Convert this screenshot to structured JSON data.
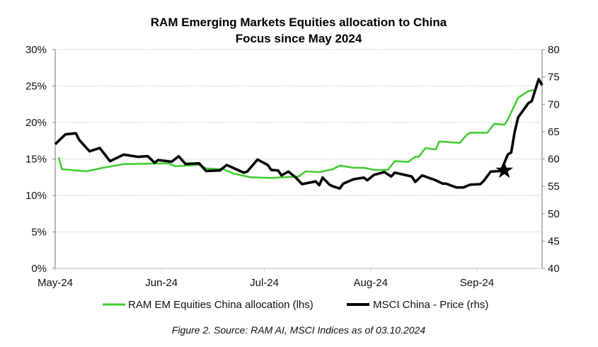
{
  "chart_data": {
    "type": "line",
    "title": [
      "RAM Emerging Markets Equities allocation to China",
      "Focus since May 2024"
    ],
    "caption": "Figure 2. Source: RAM AI, MSCI Indices as of 03.10.2024",
    "x_ticks": [
      {
        "date": "2024-05-01",
        "label": "May-24"
      },
      {
        "date": "2024-06-01",
        "label": "Jun-24"
      },
      {
        "date": "2024-07-01",
        "label": "Jul-24"
      },
      {
        "date": "2024-08-01",
        "label": "Aug-24"
      },
      {
        "date": "2024-09-01",
        "label": "Sep-24"
      }
    ],
    "xlim": [
      "2024-05-01",
      "2024-09-20"
    ],
    "y_left": {
      "lim": [
        0,
        30
      ],
      "ticks": [
        "0%",
        "5%",
        "10%",
        "15%",
        "20%",
        "25%",
        "30%"
      ],
      "values": [
        0,
        5,
        10,
        15,
        20,
        25,
        30
      ]
    },
    "y_right": {
      "lim": [
        40,
        80
      ],
      "ticks": [
        "40",
        "45",
        "50",
        "55",
        "60",
        "65",
        "70",
        "75",
        "80"
      ],
      "values": [
        40,
        45,
        50,
        55,
        60,
        65,
        70,
        75,
        80
      ]
    },
    "grid": true,
    "legend_position": "bottom",
    "series": [
      {
        "name": "RAM EM Equities China allocation (lhs)",
        "axis": "left",
        "color": "#44cc33",
        "points": [
          [
            "2024-05-02",
            15.2
          ],
          [
            "2024-05-03",
            13.6
          ],
          [
            "2024-05-10",
            13.3
          ],
          [
            "2024-05-15",
            13.8
          ],
          [
            "2024-05-21",
            14.3
          ],
          [
            "2024-06-03",
            14.4
          ],
          [
            "2024-06-05",
            14.0
          ],
          [
            "2024-06-12",
            14.2
          ],
          [
            "2024-06-14",
            13.7
          ],
          [
            "2024-06-19",
            13.6
          ],
          [
            "2024-06-22",
            13.0
          ],
          [
            "2024-06-27",
            12.5
          ],
          [
            "2024-07-03",
            12.4
          ],
          [
            "2024-07-11",
            12.6
          ],
          [
            "2024-07-13",
            13.3
          ],
          [
            "2024-07-17",
            13.2
          ],
          [
            "2024-07-21",
            13.6
          ],
          [
            "2024-07-23",
            14.1
          ],
          [
            "2024-07-27",
            13.8
          ],
          [
            "2024-07-30",
            13.8
          ],
          [
            "2024-08-02",
            13.5
          ],
          [
            "2024-08-06",
            13.5
          ],
          [
            "2024-08-08",
            14.7
          ],
          [
            "2024-08-12",
            14.6
          ],
          [
            "2024-08-14",
            15.3
          ],
          [
            "2024-08-15",
            15.3
          ],
          [
            "2024-08-17",
            16.5
          ],
          [
            "2024-08-20",
            16.3
          ],
          [
            "2024-08-21",
            17.4
          ],
          [
            "2024-08-27",
            17.2
          ],
          [
            "2024-08-29",
            18.3
          ],
          [
            "2024-08-30",
            18.6
          ],
          [
            "2024-09-04",
            18.6
          ],
          [
            "2024-09-06",
            19.8
          ],
          [
            "2024-09-09",
            19.7
          ],
          [
            "2024-09-10",
            20.4
          ],
          [
            "2024-09-13",
            23.4
          ],
          [
            "2024-09-16",
            24.3
          ],
          [
            "2024-09-18",
            24.5
          ],
          [
            "2024-09-19",
            25.8
          ],
          [
            "2024-09-20",
            25.2
          ]
        ]
      },
      {
        "name": "MSCI China - Price (rhs)",
        "axis": "right",
        "color": "#000000",
        "points": [
          [
            "2024-05-01",
            62.7
          ],
          [
            "2024-05-04",
            64.5
          ],
          [
            "2024-05-07",
            64.7
          ],
          [
            "2024-05-08",
            63.5
          ],
          [
            "2024-05-11",
            61.4
          ],
          [
            "2024-05-14",
            62.0
          ],
          [
            "2024-05-17",
            59.6
          ],
          [
            "2024-05-21",
            60.8
          ],
          [
            "2024-05-25",
            60.4
          ],
          [
            "2024-05-28",
            60.5
          ],
          [
            "2024-05-30",
            59.3
          ],
          [
            "2024-05-31",
            59.8
          ],
          [
            "2024-06-04",
            59.5
          ],
          [
            "2024-06-06",
            60.5
          ],
          [
            "2024-06-08",
            59.1
          ],
          [
            "2024-06-12",
            59.2
          ],
          [
            "2024-06-14",
            57.8
          ],
          [
            "2024-06-18",
            57.9
          ],
          [
            "2024-06-20",
            58.9
          ],
          [
            "2024-06-25",
            57.5
          ],
          [
            "2024-06-26",
            57.7
          ],
          [
            "2024-06-29",
            59.9
          ],
          [
            "2024-07-02",
            58.9
          ],
          [
            "2024-07-03",
            58.0
          ],
          [
            "2024-07-05",
            57.9
          ],
          [
            "2024-07-06",
            57.0
          ],
          [
            "2024-07-08",
            57.7
          ],
          [
            "2024-07-10",
            56.7
          ],
          [
            "2024-07-12",
            55.4
          ],
          [
            "2024-07-16",
            55.9
          ],
          [
            "2024-07-17",
            55.2
          ],
          [
            "2024-07-18",
            56.6
          ],
          [
            "2024-07-20",
            55.3
          ],
          [
            "2024-07-21",
            55.0
          ],
          [
            "2024-07-23",
            54.6
          ],
          [
            "2024-07-24",
            55.5
          ],
          [
            "2024-07-27",
            56.3
          ],
          [
            "2024-07-30",
            56.6
          ],
          [
            "2024-07-31",
            56.1
          ],
          [
            "2024-08-02",
            57.1
          ],
          [
            "2024-08-05",
            57.6
          ],
          [
            "2024-08-07",
            56.8
          ],
          [
            "2024-08-08",
            57.5
          ],
          [
            "2024-08-13",
            56.8
          ],
          [
            "2024-08-14",
            55.8
          ],
          [
            "2024-08-16",
            57.0
          ],
          [
            "2024-08-20",
            56.1
          ],
          [
            "2024-08-22",
            55.5
          ],
          [
            "2024-08-23",
            55.5
          ],
          [
            "2024-08-26",
            54.8
          ],
          [
            "2024-08-28",
            54.8
          ],
          [
            "2024-08-30",
            55.3
          ],
          [
            "2024-09-02",
            55.4
          ],
          [
            "2024-09-03",
            56.0
          ],
          [
            "2024-09-05",
            57.7
          ],
          [
            "2024-09-08",
            57.8
          ],
          [
            "2024-09-10",
            60.8
          ],
          [
            "2024-09-11",
            61.2
          ],
          [
            "2024-09-12",
            64.9
          ],
          [
            "2024-09-13",
            67.6
          ],
          [
            "2024-09-16",
            70.2
          ],
          [
            "2024-09-17",
            70.6
          ],
          [
            "2024-09-19",
            74.6
          ],
          [
            "2024-09-20",
            73.5
          ]
        ]
      }
    ],
    "annotations": [
      {
        "type": "star-marker",
        "date": "2024-09-09",
        "value": 57.9,
        "axis": "right"
      }
    ]
  }
}
